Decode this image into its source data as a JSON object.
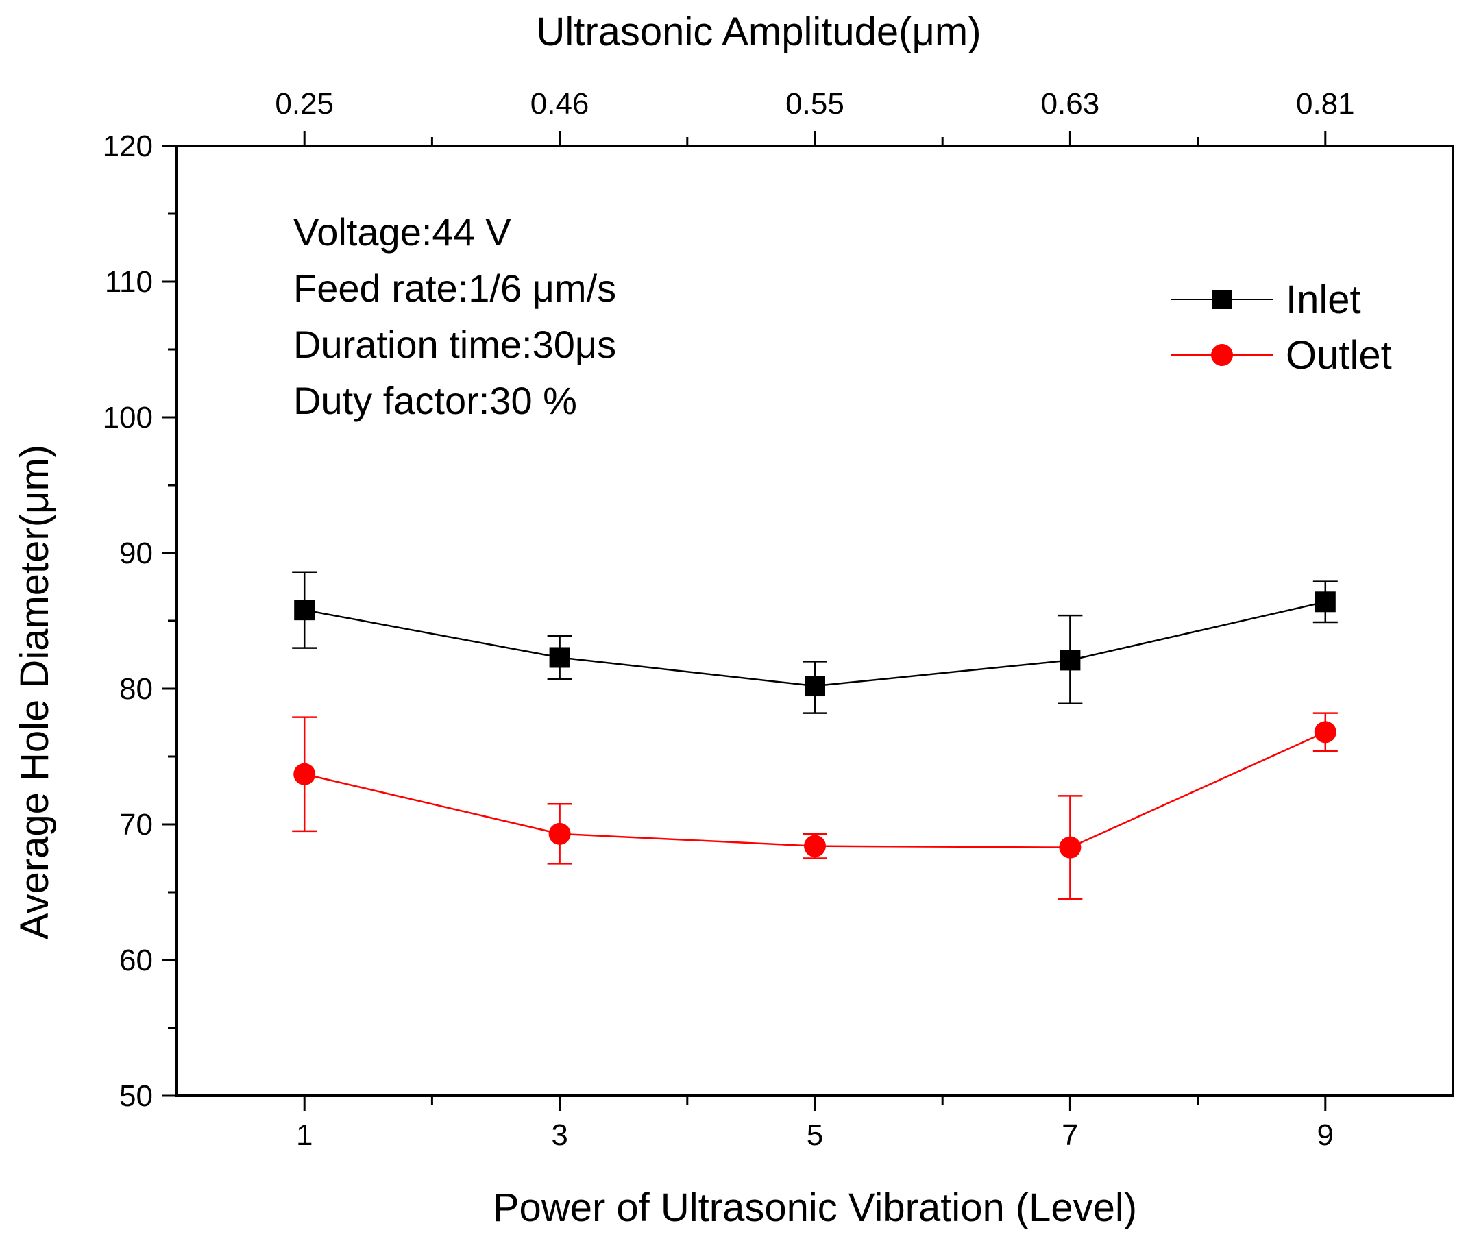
{
  "chart_data": {
    "type": "line",
    "title": "",
    "xlabel": "Power of Ultrasonic Vibration (Level)",
    "x2label": "Ultrasonic Amplitude(μm)",
    "ylabel": "Average Hole Diameter(μm)",
    "xlim": [
      0,
      10
    ],
    "ylim": [
      50,
      120
    ],
    "x_ticks": [
      1,
      3,
      5,
      7,
      9
    ],
    "x_tick_labels": [
      "1",
      "3",
      "5",
      "7",
      "9"
    ],
    "x2_ticks": [
      1,
      3,
      5,
      7,
      9
    ],
    "x2_tick_labels": [
      "0.25",
      "0.46",
      "0.55",
      "0.63",
      "0.81"
    ],
    "y_ticks": [
      50,
      60,
      70,
      80,
      90,
      100,
      110,
      120
    ],
    "y_tick_labels": [
      "50",
      "60",
      "70",
      "80",
      "90",
      "100",
      "110",
      "120"
    ],
    "x": [
      1,
      3,
      5,
      7,
      9
    ],
    "series": [
      {
        "name": "Inlet",
        "color": "#000000",
        "marker": "square",
        "values": [
          85.8,
          82.3,
          80.2,
          82.1,
          86.4
        ],
        "err_low": [
          83.0,
          80.7,
          78.2,
          78.9,
          84.9
        ],
        "err_high": [
          88.6,
          83.9,
          82.0,
          85.4,
          87.9
        ]
      },
      {
        "name": "Outlet",
        "color": "#ff0000",
        "marker": "circle",
        "values": [
          73.7,
          69.3,
          68.4,
          68.3,
          76.8
        ],
        "err_low": [
          69.5,
          67.1,
          67.5,
          64.5,
          75.4
        ],
        "err_high": [
          77.9,
          71.5,
          69.3,
          72.1,
          78.2
        ]
      }
    ],
    "annotations": [
      "Voltage:44 V",
      "Feed rate:1/6 μm/s",
      "Duration time:30μs",
      "Duty factor:30 %"
    ],
    "legend_position": "top-right",
    "grid": false
  }
}
